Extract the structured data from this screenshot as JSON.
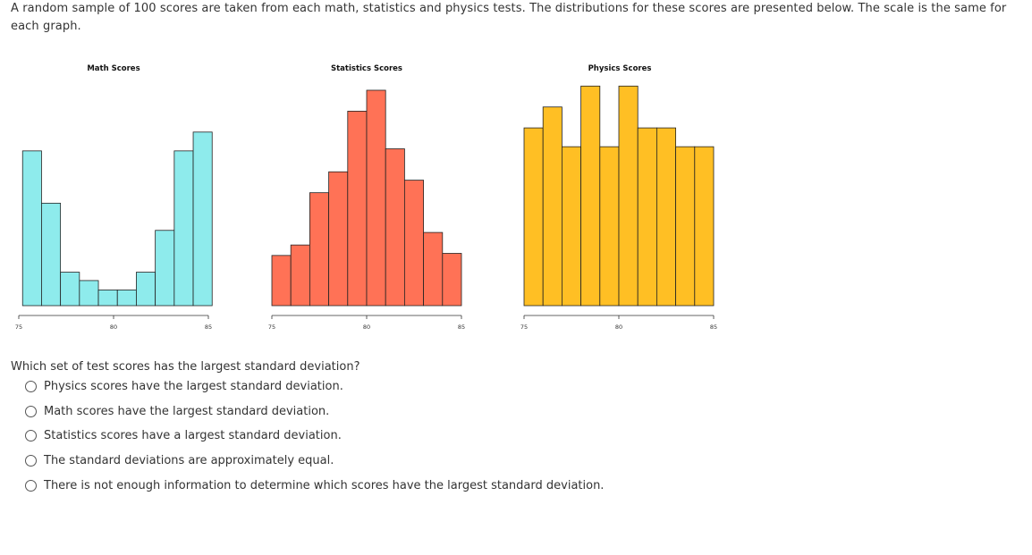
{
  "question": {
    "intro": "A random sample of 100 scores are taken from each math, statistics and physics tests. The distributions for these scores are presented below. The scale is the same for each graph.",
    "prompt": "Which set of test scores has the largest standard deviation?",
    "options": [
      "Physics scores have the largest standard deviation.",
      "Math scores have the largest standard deviation.",
      "Statistics scores have a largest standard deviation.",
      "The standard deviations are approximately equal.",
      "There is not enough information to determine which scores have the largest standard deviation."
    ]
  },
  "chart_data": [
    {
      "type": "bar",
      "title": "Math Scores",
      "color": "#8EEBEC",
      "xlim": [
        75,
        85
      ],
      "ticks": [
        "75",
        "80",
        "85"
      ],
      "bin_width": 1,
      "bin_starts": [
        75.2,
        76.2,
        77.2,
        78.2,
        79.2,
        80.2,
        81.2,
        82.2,
        83.2,
        84.2
      ],
      "values": [
        7.4,
        4.9,
        1.6,
        1.2,
        0.75,
        0.75,
        1.6,
        3.6,
        7.4,
        8.3
      ]
    },
    {
      "type": "bar",
      "title": "Statistics Scores",
      "color": "#FF7256",
      "xlim": [
        75,
        85
      ],
      "ticks": [
        "75",
        "80",
        "85"
      ],
      "bin_width": 1,
      "bin_starts": [
        75,
        76,
        77,
        78,
        79,
        80,
        81,
        82,
        83,
        84
      ],
      "values": [
        2.4,
        2.9,
        5.4,
        6.4,
        9.3,
        10.3,
        7.5,
        6.0,
        3.5,
        2.5
      ]
    },
    {
      "type": "bar",
      "title": "Physics Scores",
      "color": "#FFBF24",
      "xlim": [
        75,
        85
      ],
      "ticks": [
        "75",
        "80",
        "85"
      ],
      "bin_width": 1,
      "bin_starts": [
        75,
        76,
        77,
        78,
        79,
        80,
        81,
        82,
        83,
        84
      ],
      "values": [
        8.5,
        9.5,
        7.6,
        10.5,
        7.6,
        10.5,
        8.5,
        8.5,
        7.6,
        7.6
      ]
    }
  ]
}
